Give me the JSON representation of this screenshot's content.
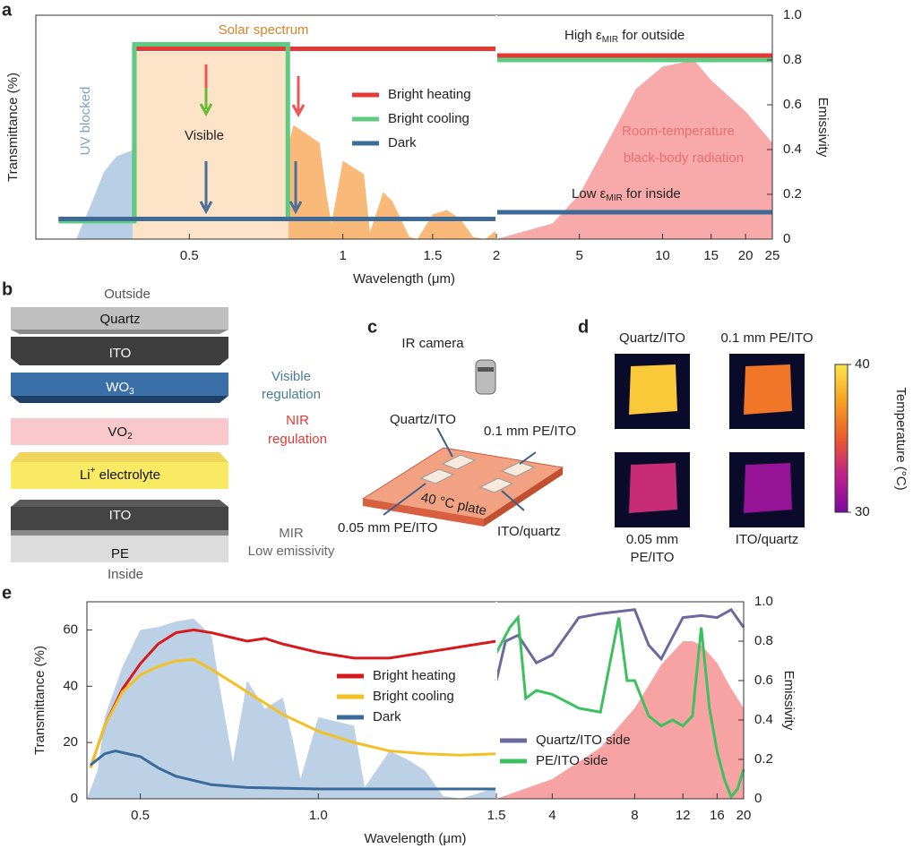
{
  "panel_labels": [
    "a",
    "b",
    "c",
    "d",
    "e"
  ],
  "panel_a": {
    "type": "line",
    "x_label": "Wavelength (μm)",
    "y_label": "Transmittance (%)",
    "y2_label": "Emissivity",
    "x_left": {
      "scale": "log",
      "lim": [
        0.25,
        2
      ],
      "ticks": [
        0.5,
        1,
        1.5,
        2
      ]
    },
    "x_right": {
      "scale": "log",
      "lim": [
        2.5,
        25
      ],
      "ticks": [
        5,
        10,
        15,
        20,
        25
      ]
    },
    "ylim": [
      0,
      100
    ],
    "y2lim": [
      0,
      1
    ],
    "y2ticks": [
      0,
      0.2,
      0.4,
      0.6,
      0.8,
      {
        "value": 1,
        "label": "1.0"
      }
    ],
    "areas": [
      {
        "axis": "y",
        "color": "#b9cfe6",
        "x": [
          0.3,
          0.32,
          0.34,
          0.36,
          0.39
        ],
        "values": [
          0,
          15,
          30,
          37,
          40
        ]
      },
      {
        "axis": "y",
        "color": "#f9b978",
        "x": [
          0.39,
          0.42,
          0.45,
          0.5,
          0.55,
          0.6,
          0.7,
          0.75,
          0.76,
          0.8,
          0.9,
          0.93,
          0.95,
          1.0,
          1.1,
          1.13,
          1.2,
          1.25,
          1.35,
          1.4,
          1.5,
          1.6,
          1.7,
          1.8,
          1.9,
          2.0
        ],
        "values": [
          79,
          82,
          81,
          79,
          83,
          75,
          67,
          65,
          31,
          51,
          43,
          19,
          7,
          35,
          29,
          3,
          21,
          17,
          1,
          0,
          11,
          13,
          9,
          1,
          0,
          4
        ]
      },
      {
        "axis": "y2",
        "color": "#f8a9a9",
        "x": [
          2.5,
          4,
          5,
          6,
          8,
          10,
          13,
          15,
          20,
          25
        ],
        "values": [
          0,
          0.07,
          0.2,
          0.38,
          0.67,
          0.77,
          0.8,
          0.71,
          0.57,
          0.43
        ]
      }
    ],
    "series": [
      {
        "name": "Bright heating",
        "color": "#e53935",
        "transmittance": {
          "x": [
            0.277,
            0.39,
            0.39,
            2
          ],
          "values": [
            9,
            9,
            85,
            85
          ]
        },
        "emissivity": {
          "x": [
            2.5,
            25
          ],
          "values": [
            0.82,
            0.82
          ]
        }
      },
      {
        "name": "Bright cooling",
        "color": "#5ecb82",
        "transmittance": {
          "x": [
            0.277,
            0.39,
            0.39,
            0.78,
            0.78,
            2
          ],
          "values": [
            8,
            8,
            87,
            87,
            9,
            9
          ]
        },
        "emissivity": {
          "x": [
            2.5,
            25
          ],
          "values": [
            0.8,
            0.8
          ]
        }
      },
      {
        "name": "Dark",
        "color": "#3e6a98",
        "transmittance": {
          "x": [
            0.277,
            2
          ],
          "values": [
            9,
            9
          ]
        },
        "emissivity": {
          "x": [
            2.5,
            25
          ],
          "values": [
            0.12,
            0.12
          ]
        }
      }
    ],
    "annotations": {
      "solar_spectrum": "Solar spectrum",
      "uv_blocked": "UV blocked",
      "visible": "Visible",
      "high_emissivity": {
        "pre": "High ε",
        "sub": "MIR",
        "post": " for outside"
      },
      "low_emissivity": {
        "pre": "Low ε",
        "sub": "MIR",
        "post": " for inside"
      },
      "blackbody": [
        "Room-temperature",
        "black-body radiation"
      ]
    }
  },
  "panel_b": {
    "outside": "Outside",
    "inside": "Inside",
    "layers": [
      {
        "text": "Quartz"
      },
      {
        "text": "ITO"
      },
      {
        "text": "WO",
        "sub": "3"
      },
      {
        "text": "VO",
        "sub": "2"
      },
      {
        "text": "Li",
        "sup": "+",
        "post": " electrolyte"
      },
      {
        "text": "ITO"
      },
      {
        "text": "PE"
      }
    ],
    "notes": [
      [
        "Visible",
        "regulation"
      ],
      [
        "NIR",
        "regulation"
      ],
      [
        "MIR",
        "Low emissivity"
      ]
    ]
  },
  "panel_c": {
    "camera": "IR camera",
    "plate": "40 °C plate",
    "samples": [
      "Quartz/ITO",
      "0.1 mm PE/ITO",
      "0.05 mm PE/ITO",
      "ITO/quartz"
    ]
  },
  "panel_d": {
    "samples": [
      {
        "label": [
          "Quartz/ITO"
        ],
        "temperature": 39
      },
      {
        "label": [
          "0.1 mm PE/ITO"
        ],
        "temperature": 36
      },
      {
        "label": [
          "0.05 mm",
          "PE/ITO"
        ],
        "temperature": 33
      },
      {
        "label": [
          "ITO/quartz"
        ],
        "temperature": 31
      }
    ],
    "colorbar": {
      "label": "Temperature (°C)",
      "lim": [
        30,
        40
      ],
      "ticks": [
        30,
        40
      ],
      "colors": [
        "#7a0aa0",
        "#c0208a",
        "#ec5a2c",
        "#f8a020",
        "#fbe54a"
      ]
    }
  },
  "panel_e": {
    "type": "line",
    "x_label": "Wavelength (μm)",
    "y_label": "Transmittance (%)",
    "y2_label": "Emissivity",
    "x_left": {
      "scale": "linear",
      "lim": [
        0.35,
        1.5
      ],
      "ticks": [
        0.5,
        {
          "value": 1,
          "label": "1.0"
        },
        1.5
      ]
    },
    "x_right": {
      "scale": "log",
      "lim": [
        2.5,
        20
      ],
      "ticks": [
        4,
        8,
        12,
        16,
        20
      ]
    },
    "ylim": [
      0,
      70
    ],
    "yticks": [
      0,
      20,
      40,
      60
    ],
    "y2lim": [
      0,
      1
    ],
    "y2ticks": [
      0,
      0.2,
      0.4,
      0.6,
      0.8,
      {
        "value": 1,
        "label": "1.0"
      }
    ],
    "areas": [
      {
        "axis": "y",
        "color": "#bcd0e6",
        "x": [
          0.35,
          0.38,
          0.4,
          0.45,
          0.5,
          0.55,
          0.6,
          0.65,
          0.7,
          0.72,
          0.76,
          0.8,
          0.85,
          0.9,
          0.93,
          0.95,
          1.0,
          1.1,
          1.13,
          1.2,
          1.25,
          1.3,
          1.35,
          1.4,
          1.45,
          1.5
        ],
        "values": [
          0,
          10,
          29,
          47,
          60,
          61,
          63,
          64,
          58,
          42,
          13,
          42,
          32,
          36,
          20,
          7,
          29,
          26,
          4,
          17,
          14,
          10,
          1,
          0,
          2,
          4
        ]
      },
      {
        "axis": "y2",
        "color": "#f7a3a3",
        "x": [
          2.5,
          4,
          6,
          8,
          10,
          12,
          13,
          14,
          16,
          18,
          20
        ],
        "values": [
          0,
          0.1,
          0.26,
          0.46,
          0.68,
          0.8,
          0.8,
          0.78,
          0.69,
          0.56,
          0.46
        ]
      }
    ],
    "series": [
      {
        "name": "Bright heating",
        "color": "#d7191c",
        "transmittance": {
          "x": [
            0.36,
            0.4,
            0.45,
            0.5,
            0.55,
            0.6,
            0.65,
            0.7,
            0.8,
            0.85,
            0.9,
            1.0,
            1.1,
            1.2,
            1.3,
            1.4,
            1.5
          ],
          "values": [
            11,
            26,
            39,
            48,
            55,
            59,
            60,
            59,
            56,
            57,
            55,
            52,
            50,
            50,
            52,
            54,
            56
          ]
        }
      },
      {
        "name": "Bright cooling",
        "color": "#f2c025",
        "transmittance": {
          "x": [
            0.36,
            0.4,
            0.45,
            0.5,
            0.55,
            0.6,
            0.65,
            0.7,
            0.8,
            0.9,
            1.0,
            1.1,
            1.2,
            1.3,
            1.4,
            1.5
          ],
          "values": [
            11,
            26,
            38,
            44,
            47,
            49,
            49.5,
            46,
            38,
            30,
            24,
            20,
            17,
            16,
            15.5,
            16
          ]
        }
      },
      {
        "name": "Dark",
        "color": "#3a6a9a",
        "transmittance": {
          "x": [
            0.36,
            0.4,
            0.43,
            0.5,
            0.55,
            0.6,
            0.7,
            0.8,
            1.0,
            1.2,
            1.5
          ],
          "values": [
            12,
            16,
            17,
            15,
            11,
            8,
            5,
            4,
            3.5,
            3.5,
            3.5
          ]
        }
      },
      {
        "name": "Quartz/ITO side",
        "color": "#6b6a9e",
        "emissivity": {
          "x": [
            2.5,
            2.7,
            3,
            3.5,
            4,
            5,
            6,
            8,
            9,
            10,
            11,
            12,
            14,
            16,
            18,
            20
          ],
          "values": [
            0.6,
            0.8,
            0.83,
            0.69,
            0.73,
            0.92,
            0.94,
            0.96,
            0.78,
            0.71,
            0.82,
            0.92,
            0.93,
            0.92,
            0.96,
            0.87
          ]
        }
      },
      {
        "name": "PE/ITO side",
        "color": "#3cc060",
        "emissivity": {
          "x": [
            2.5,
            2.8,
            3,
            3.2,
            3.5,
            4,
            5,
            6,
            6.5,
            7,
            7.5,
            8,
            9,
            10,
            11,
            12,
            13,
            14,
            15,
            16,
            17,
            18,
            19,
            20
          ],
          "values": [
            0.74,
            0.87,
            0.92,
            0.51,
            0.55,
            0.53,
            0.46,
            0.44,
            0.69,
            0.92,
            0.6,
            0.6,
            0.42,
            0.37,
            0.4,
            0.37,
            0.42,
            0.87,
            0.46,
            0.24,
            0.1,
            0.01,
            0.05,
            0.15
          ]
        }
      }
    ]
  }
}
